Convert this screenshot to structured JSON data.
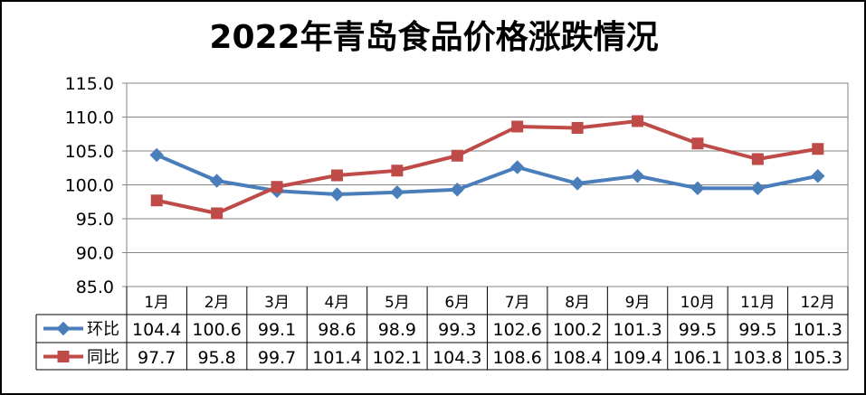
{
  "chart_data": {
    "type": "line",
    "title": "2022年青岛食品价格涨跌情况",
    "categories": [
      "1月",
      "2月",
      "3月",
      "4月",
      "5月",
      "6月",
      "7月",
      "8月",
      "9月",
      "10月",
      "11月",
      "12月"
    ],
    "series": [
      {
        "name": "环比",
        "color": "#4a7ebb",
        "marker": "diamond",
        "values": [
          104.4,
          100.6,
          99.1,
          98.6,
          98.9,
          99.3,
          102.6,
          100.2,
          101.3,
          99.5,
          99.5,
          101.3
        ],
        "labels": [
          "104.4",
          "100.6",
          "99.1",
          "98.6",
          "98.9",
          "99.3",
          "102.6",
          "100.2",
          "101.3",
          "99.5",
          "99.5",
          "101.3"
        ]
      },
      {
        "name": "同比",
        "color": "#be4b48",
        "marker": "square",
        "values": [
          97.7,
          95.8,
          99.7,
          101.4,
          102.1,
          104.3,
          108.6,
          108.4,
          109.4,
          106.1,
          103.8,
          105.3
        ],
        "labels": [
          "97.7",
          "95.8",
          "99.7",
          "101.4",
          "102.1",
          "104.3",
          "108.6",
          "108.4",
          "109.4",
          "106.1",
          "103.8",
          "105.3"
        ]
      }
    ],
    "ylim": [
      85,
      115
    ],
    "yticks": [
      "85.0",
      "90.0",
      "95.0",
      "100.0",
      "105.0",
      "110.0",
      "115.0"
    ],
    "grid": true,
    "legend": "data-table"
  }
}
